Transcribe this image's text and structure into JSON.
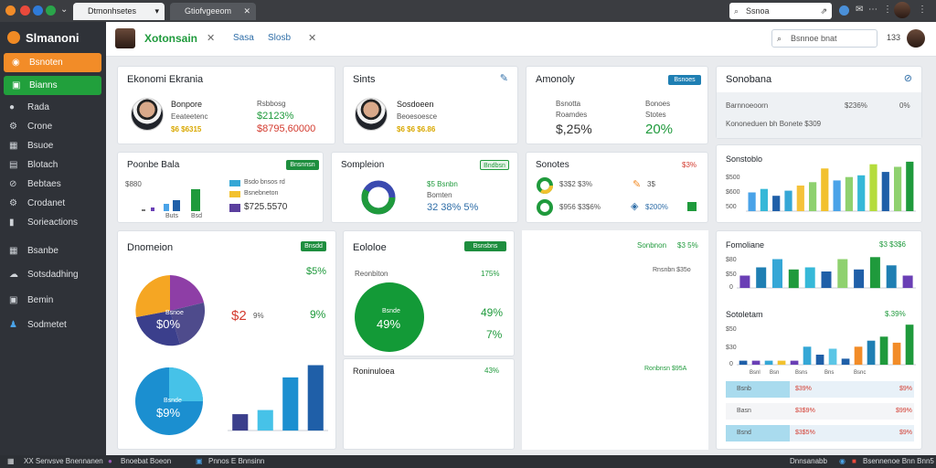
{
  "browser": {
    "tab_active": "Dtmonhsetes Bsctsem",
    "tab_inactive": "Gtiofvgeeom",
    "url": "Ssnoa"
  },
  "sidebar": {
    "brand": "Slmanoni",
    "buttons": [
      {
        "label": "Bsnoten",
        "color": "#f28c28"
      },
      {
        "label": "Bianns",
        "color": "#21a03c"
      }
    ],
    "items": [
      {
        "label": "Rada",
        "icon": "droplet-icon"
      },
      {
        "label": "Crone",
        "icon": "gear-icon"
      },
      {
        "label": "Bsuoe",
        "icon": "grid-icon"
      },
      {
        "label": "Blotach",
        "icon": "document-icon"
      },
      {
        "label": "Bebtaes",
        "icon": "link-icon"
      },
      {
        "label": "Crodanet",
        "icon": "gear-icon"
      },
      {
        "label": "Sorieactions",
        "icon": "code-icon"
      },
      {
        "label": "Bsanbe",
        "icon": "calendar-icon"
      },
      {
        "label": "Sotsdadhing",
        "icon": "cloud-icon"
      },
      {
        "label": "Bemin",
        "icon": "grid-icon"
      },
      {
        "label": "Sodmetet",
        "icon": "person-icon"
      }
    ]
  },
  "header": {
    "title": "Xotonsain",
    "tab1": "Sasa",
    "tab2": "Slosb",
    "search_placeholder": "Bsnnoe bnat",
    "count": "133"
  },
  "cards": {
    "ekrania": {
      "title": "Ekonomi Ekrania",
      "name": "Bonpore",
      "sub": "Eeateetenc",
      "stat1": "$6 $6315",
      "right_top": "Rsbbosg",
      "right_pct": "$2123%",
      "right_val": "$8795,60000"
    },
    "sints": {
      "title": "Sints",
      "name": "Sosdoeen",
      "sub": "Beoesoesce",
      "stat": "$6 $6 $6.86"
    },
    "amonoly": {
      "title": "Amonoly",
      "badge": "Bsnoes",
      "l1": "Bsnotta",
      "l2": "Roamdes",
      "val": "$,25%",
      "r1": "Bonoes",
      "r2": "Stotes",
      "pct": "20%"
    },
    "sonobana": {
      "title": "Sonobana",
      "row1_label": "Barnnoeoorn",
      "row1_val": "$236%",
      "row1_pct": "0%",
      "row2": "Kononeduen bh Bonete $309"
    },
    "bala": {
      "title": "Poonbe Bala",
      "badge": "Bnsnnsn",
      "ylabel": "$880",
      "legend1": "Bsdo bnsos rd",
      "legend2": "Bsnebneton",
      "bigval": "$725.5570",
      "xl1": "Buts",
      "xl2": "Bsd"
    },
    "sompleion": {
      "title": "Sompleion",
      "badge": "Bndbsn",
      "l1": "$5 Bsnbn",
      "l2": "Bomten",
      "val": "32 38% 5%"
    },
    "sonotes": {
      "title": "Sonotes",
      "pct": "$3%",
      "r1": "$3$2 $3%",
      "r1b": "3$",
      "r2": "$956 $3$6%",
      "r2b": "$200%"
    },
    "bar_chart": {
      "title": "Sonstoblo",
      "ylabels": [
        "$500",
        "$600",
        "500"
      ]
    },
    "dnomeion": {
      "title": "Dnomeion",
      "badge": "Bnsdd",
      "pct_top": "$5%",
      "label_left": "$2",
      "label_mid": "9%",
      "label_right": "9%",
      "pie_label": "Bsnoe",
      "pie_val": "$0%",
      "donut_label": "Bsnde",
      "donut_val": "$9%"
    },
    "eololoe": {
      "title": "Eololoe",
      "badge": "Bsnsbns",
      "sub": "Reonbiton",
      "sub_pct": "175%",
      "circle_label": "Bsnde",
      "circle_val": "49%",
      "r1": "49%",
      "r2": "7%",
      "footer": "Roninuloea",
      "footer_pct": "43%"
    },
    "mid_right": {
      "t1": "Sonbnon",
      "t1b": "$3 5%",
      "t2": "Rnsnbn $35o",
      "t3": "Ronbnsn $95A"
    },
    "fomoliane": {
      "title": "Fomoliane",
      "pct": "$3 $3$6",
      "ylabels": [
        "$80",
        "$50",
        "0"
      ],
      "title2": "Sotoletam",
      "pct2": "$.39%",
      "ylabels2": [
        "$50",
        "$30",
        "0"
      ],
      "xlabels": [
        "Bsnl",
        "Bsn",
        "Bsns",
        "Bns",
        "Bsnc"
      ],
      "rows": [
        {
          "label": "Bsnb",
          "val": "$39%",
          "right": "$9%"
        },
        {
          "label": "Basn",
          "val": "$3$9%",
          "right": "$99%"
        },
        {
          "label": "Bsnd",
          "val": "$3$5%",
          "right": "$9%"
        }
      ]
    }
  },
  "statusbar": {
    "s1": "XX Senvsve Bnennanen",
    "s2": "Bnoebat Boeon",
    "s3": "Pnnos E Bnnsinn",
    "s4": "Dnnsanabb",
    "s5": "Bsennenoe Bnn Bnn5"
  },
  "chart_data": [
    {
      "type": "bar",
      "categories": [
        "1",
        "2",
        "3",
        "4",
        "5",
        "6",
        "7",
        "8",
        "9",
        "10",
        "11",
        "12",
        "13",
        "14"
      ],
      "series": [
        {
          "values": [
            22,
            26,
            18,
            24,
            30,
            34,
            50,
            36,
            40,
            42,
            55,
            46,
            52,
            58
          ]
        }
      ]
    },
    {
      "type": "bar",
      "categories": [
        "1",
        "2",
        "3",
        "4",
        "5",
        "6",
        "7",
        "8",
        "9",
        "10",
        "11"
      ],
      "series": [
        {
          "values": [
            12,
            20,
            28,
            18,
            20,
            16,
            28,
            18,
            30,
            22,
            12
          ]
        }
      ]
    },
    {
      "type": "bar",
      "categories": [
        "1",
        "2",
        "3",
        "4",
        "5",
        "6",
        "7",
        "8",
        "9",
        "10",
        "11",
        "12",
        "13",
        "14"
      ],
      "series": [
        {
          "values": [
            4,
            4,
            4,
            4,
            4,
            18,
            10,
            16,
            6,
            18,
            24,
            28,
            22,
            40
          ]
        }
      ]
    },
    {
      "type": "bar",
      "categories": [
        "1",
        "2",
        "3",
        "4"
      ],
      "series": [
        {
          "values": [
            20,
            25,
            65,
            80
          ]
        }
      ]
    },
    {
      "type": "pie",
      "categories": [
        "a",
        "b",
        "c",
        "d"
      ],
      "values": [
        30,
        25,
        25,
        20
      ]
    }
  ]
}
